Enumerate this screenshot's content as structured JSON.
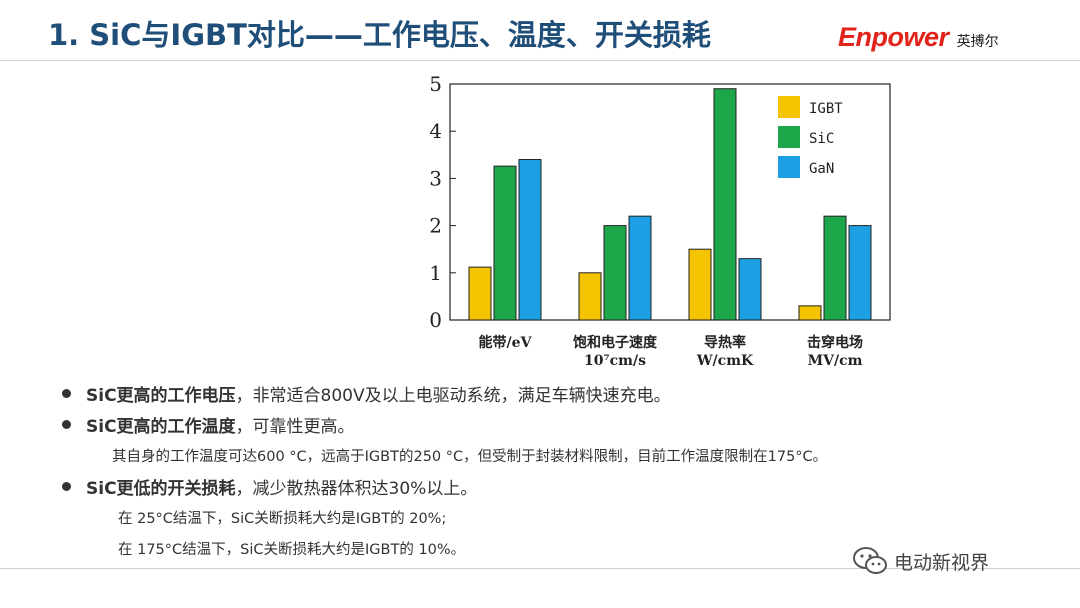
{
  "header": {
    "title": "1. SiC与IGBT对比——工作电压、温度、开关损耗",
    "logo_main": "Enpower",
    "logo_sub": "英搏尔"
  },
  "chart_data": {
    "type": "bar",
    "categories": [
      "能带/eV",
      "饱和电子速度\n10⁷cm/s",
      "导热率\nW/cmK",
      "击穿电场\nMV/cm"
    ],
    "series": [
      {
        "name": "IGBT",
        "values": [
          1.12,
          1.0,
          1.5,
          0.3
        ],
        "color": "#F5C400"
      },
      {
        "name": "SiC",
        "values": [
          3.26,
          2.0,
          4.9,
          2.2
        ],
        "color": "#1DA64A"
      },
      {
        "name": "GaN",
        "values": [
          3.4,
          2.2,
          1.3,
          2.0
        ],
        "color": "#1C9FE3"
      }
    ],
    "yticks": [
      "0",
      "1",
      "2",
      "3",
      "4",
      "5"
    ],
    "ylim": [
      0,
      5
    ],
    "legend_position": "top-right",
    "grid": false
  },
  "bullets": [
    {
      "bold": "SiC更高的工作电压",
      "rest": "，非常适合800V及以上电驱动系统，满足车辆快速充电。"
    },
    {
      "bold": "SiC更高的工作温度",
      "rest": "，可靠性更高。"
    },
    {
      "bold": "SiC更低的开关损耗",
      "rest": "，减少散热器体积达30%以上。"
    }
  ],
  "subs": [
    "其自身的工作温度可达600 °C，远高于IGBT的250 °C，但受制于封装材料限制，目前工作温度限制在175°C。",
    "在  25°C结温下，SiC关断损耗大约是IGBT的 20%;",
    "在 175°C结温下，SiC关断损耗大约是IGBT的 10%。"
  ],
  "footer": {
    "wechat_label": "电动新视界",
    "wechat_icon": "wechat-icon"
  }
}
